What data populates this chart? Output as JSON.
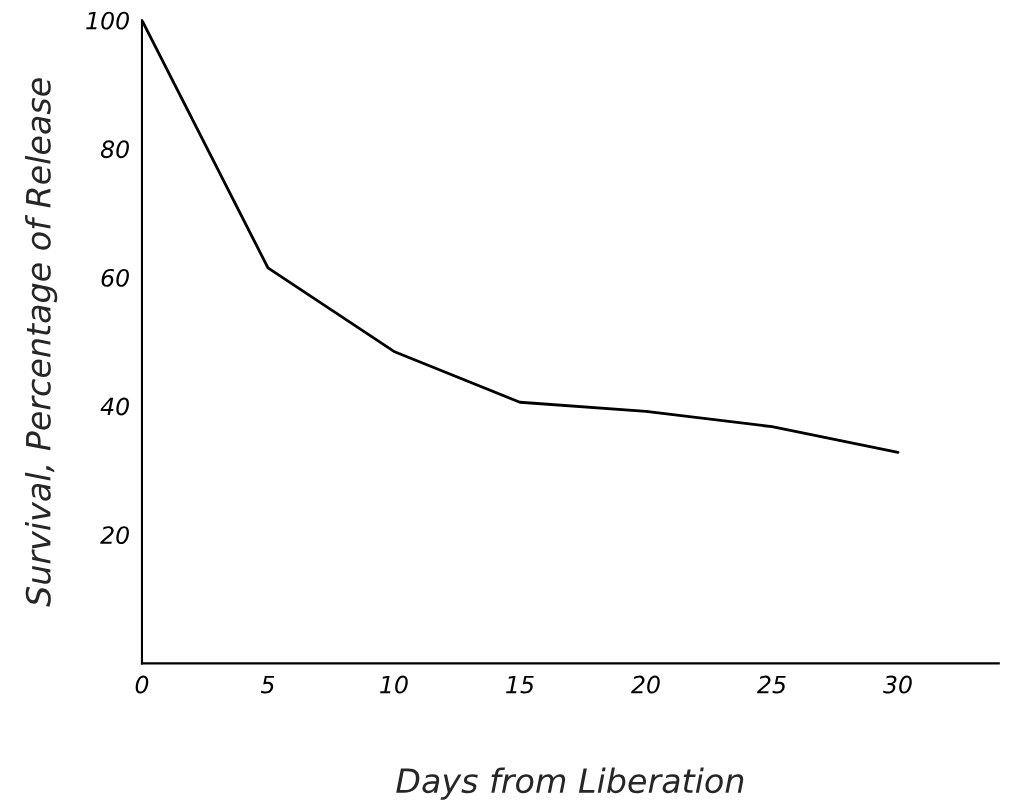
{
  "chart_data": {
    "type": "line",
    "xlabel": "Days from Liberation",
    "ylabel": "Survival, Percentage of Release",
    "x": [
      0,
      5,
      10,
      15,
      20,
      25,
      30
    ],
    "values": [
      100,
      61.5,
      48.5,
      40.6,
      39.2,
      36.8,
      32.8
    ],
    "color": "#000000",
    "xlim": [
      0,
      34
    ],
    "xticks": [
      0,
      5,
      10,
      15,
      20,
      25,
      30
    ],
    "ylim": [
      0,
      100
    ],
    "yticks": [
      20,
      40,
      60,
      80,
      100
    ],
    "grid": false,
    "marker": "none",
    "line_style": "solid"
  }
}
